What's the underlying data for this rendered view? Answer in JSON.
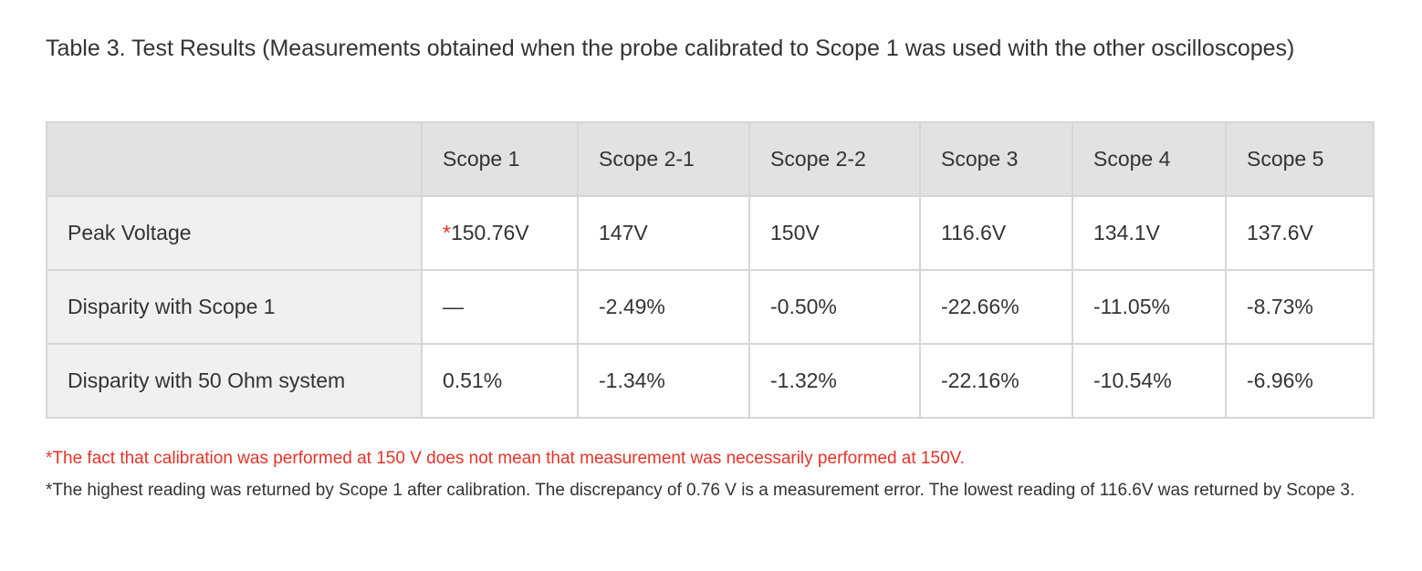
{
  "title": "Table 3. Test Results (Measurements obtained when the probe calibrated to Scope 1 was used with the other oscilloscopes)",
  "table": {
    "headers": [
      "",
      "Scope 1",
      "Scope 2-1",
      "Scope 2-2",
      "Scope 3",
      "Scope 4",
      "Scope 5"
    ],
    "rows": [
      {
        "label": "Peak Voltage",
        "marker": "*",
        "cells": [
          "150.76V",
          "147V",
          "150V",
          "116.6V",
          "134.1V",
          "137.6V"
        ]
      },
      {
        "label": "Disparity with Scope 1",
        "cells": [
          "—",
          "-2.49%",
          "-0.50%",
          "-22.66%",
          "-11.05%",
          "-8.73%"
        ]
      },
      {
        "label": "Disparity with 50 Ohm system",
        "cells": [
          "0.51%",
          "-1.34%",
          "-1.32%",
          "-22.16%",
          "-10.54%",
          "-6.96%"
        ]
      }
    ]
  },
  "notes": [
    "*The fact that calibration was performed at 150 V does not mean that measurement was necessarily performed at 150V.",
    "*The highest reading was returned by Scope 1 after calibration. The discrepancy of 0.76 V is a measurement error. The lowest reading of 116.6V was returned by Scope 3."
  ],
  "colors": {
    "note_red": "#e5332a",
    "header_bg": "#e2e2e2",
    "row_header_bg": "#f0f0f0"
  }
}
